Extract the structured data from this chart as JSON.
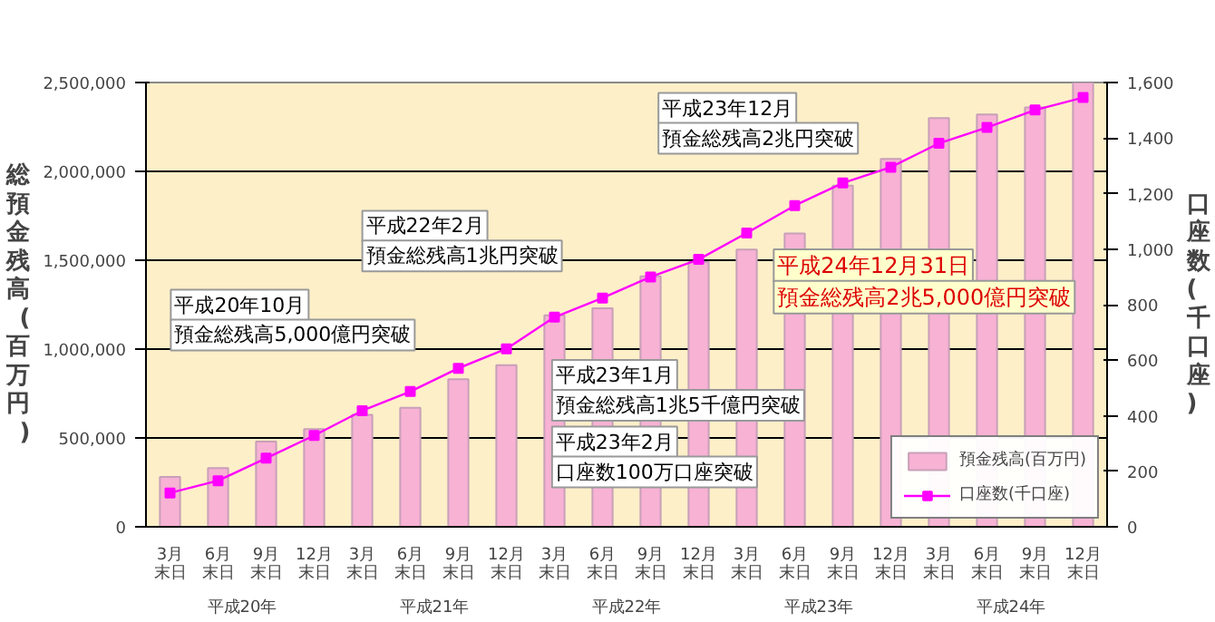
{
  "chart_data": {
    "type": "bar",
    "ylabel": "総預金残高(百万円)",
    "y2label": "口座数(千口座)",
    "categories": [
      "3月末日",
      "6月末日",
      "9月末日",
      "12月末日",
      "3月末日",
      "6月末日",
      "9月末日",
      "12月末日",
      "3月末日",
      "6月末日",
      "9月末日",
      "12月末日",
      "3月末日",
      "6月末日",
      "9月末日",
      "12月末日",
      "3月末日",
      "6月末日",
      "9月末日",
      "12月末日"
    ],
    "series": [
      {
        "name": "預金残高(百万円)",
        "color": "#f7b2d4",
        "values": [
          280000,
          330000,
          480000,
          550000,
          630000,
          670000,
          830000,
          910000,
          1190000,
          1230000,
          1410000,
          1490000,
          1560000,
          1650000,
          1920000,
          2070000,
          2300000,
          2320000,
          2360000,
          2500000
        ]
      },
      {
        "name": "口座数(千口座)",
        "type": "line",
        "axis": "y2",
        "color": "#ff00ff",
        "marker": "square",
        "values": [
          122,
          166,
          247,
          329,
          418,
          487,
          571,
          641,
          755,
          824,
          900,
          963,
          1058,
          1157,
          1238,
          1295,
          1381,
          1438,
          1501,
          1546
        ]
      }
    ],
    "ylim": [
      0,
      2500000
    ],
    "yticks": [
      0,
      {
        "value": 500000,
        "label": "500,000"
      },
      {
        "value": 1000000,
        "label": "1,000,000"
      },
      {
        "value": 1500000,
        "label": "1,500,000"
      },
      {
        "value": 2000000,
        "label": "2,000,000"
      },
      {
        "value": 2500000,
        "label": "2,500,000"
      }
    ],
    "y2lim": [
      0,
      1600
    ],
    "y2ticks": [
      0,
      200,
      400,
      600,
      800,
      {
        "value": 1000,
        "label": "1,000"
      },
      {
        "value": 1200,
        "label": "1,200"
      },
      {
        "value": 1400,
        "label": "1,400"
      },
      {
        "value": 1600,
        "label": "1,600"
      }
    ],
    "grid": "y",
    "legend": "bottom right",
    "annotations": [
      "平成20年",
      "平成21年",
      "平成22年",
      "平成23年",
      "平成24年",
      "平成20年10月",
      "預金総残高5,000億円突破",
      "平成22年2月",
      "預金総残高1兆円突破",
      "平成23年1月",
      "預金総残高1兆5千億円突破",
      "平成23年2月",
      "口座数100万口座突破",
      "平成23年12月",
      "預金総残高2兆円突破",
      "平成24年12月31日",
      "預金総残高2兆5,000億円突破"
    ]
  }
}
